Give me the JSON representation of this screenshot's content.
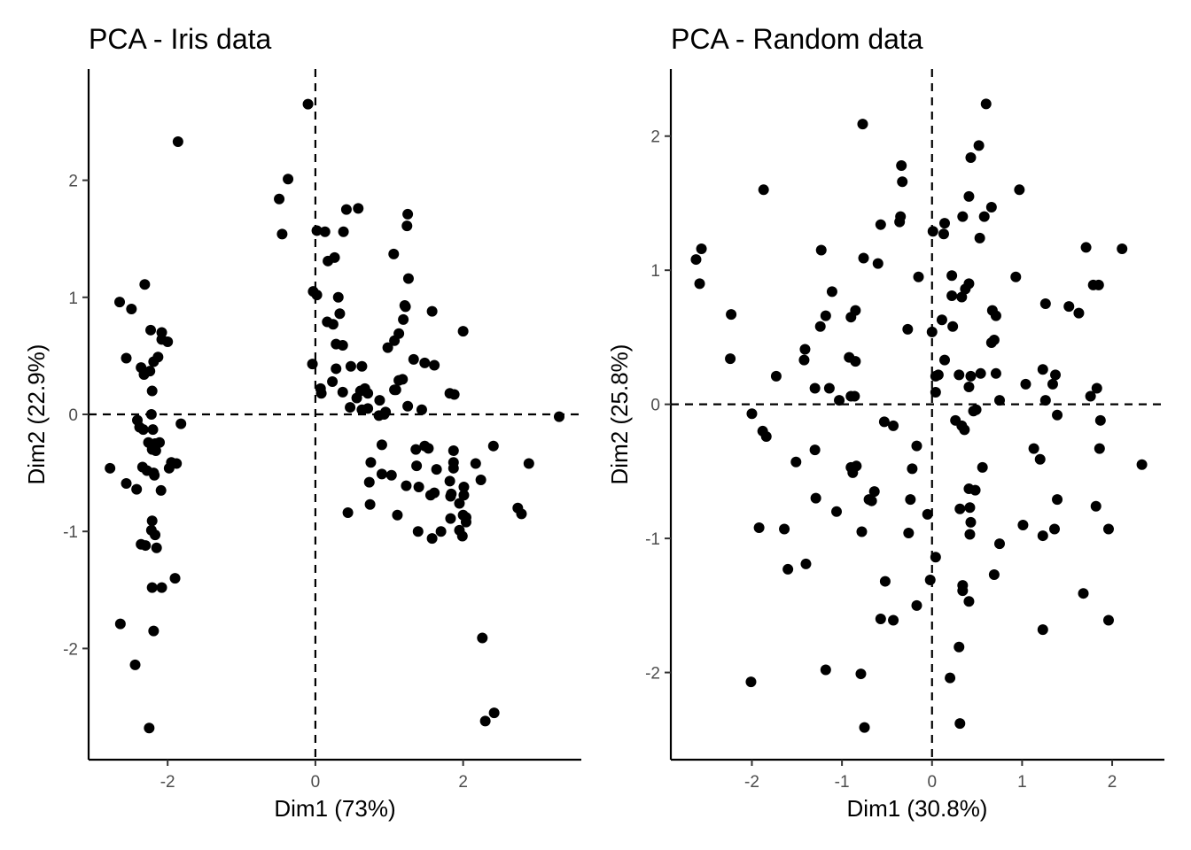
{
  "chart_data": [
    {
      "type": "scatter",
      "title": "PCA - Iris data",
      "xlabel": "Dim1 (73%)",
      "ylabel": "Dim2 (22.9%)",
      "xlim": [
        -3.07,
        3.6
      ],
      "ylim": [
        -2.95,
        2.95
      ],
      "x_ticks": [
        -2,
        0,
        2
      ],
      "y_ticks": [
        -2,
        -1,
        0,
        1,
        2
      ],
      "x_tick_labels": [
        "-2",
        "0",
        "2"
      ],
      "y_tick_labels": [
        "-2",
        "-1",
        "0",
        "1",
        "2"
      ],
      "reference_lines": {
        "x": 0,
        "y": 0,
        "style": "dashed"
      },
      "grid": false,
      "marker_color": "#000000",
      "points": [
        [
          -2.23,
          0.72
        ],
        [
          -2.08,
          0.7
        ],
        [
          -2.08,
          0.64
        ],
        [
          -2.13,
          0.49
        ],
        [
          -2.19,
          0.45
        ],
        [
          -2.0,
          0.62
        ],
        [
          -2.24,
          0.37
        ],
        [
          -2.36,
          0.4
        ],
        [
          -2.32,
          0.34
        ],
        [
          -2.49,
          0.9
        ],
        [
          -2.65,
          0.96
        ],
        [
          -2.31,
          1.11
        ],
        [
          -2.56,
          0.48
        ],
        [
          -2.21,
          0.2
        ],
        [
          -2.41,
          -0.05
        ],
        [
          -2.22,
          0.0
        ],
        [
          -2.33,
          -0.13
        ],
        [
          -2.38,
          -0.11
        ],
        [
          -2.2,
          -0.13
        ],
        [
          -2.26,
          -0.24
        ],
        [
          -2.17,
          -0.25
        ],
        [
          -2.11,
          -0.24
        ],
        [
          -2.21,
          -0.3
        ],
        [
          -2.16,
          -0.31
        ],
        [
          -1.82,
          -0.08
        ],
        [
          -1.95,
          -0.41
        ],
        [
          -1.88,
          -0.42
        ],
        [
          -1.98,
          -0.46
        ],
        [
          -2.34,
          -0.45
        ],
        [
          -2.19,
          -0.5
        ],
        [
          -2.28,
          -0.48
        ],
        [
          -2.18,
          -0.52
        ],
        [
          -2.56,
          -0.59
        ],
        [
          -2.42,
          -0.64
        ],
        [
          -2.09,
          -0.65
        ],
        [
          -2.78,
          -0.46
        ],
        [
          -2.21,
          -0.91
        ],
        [
          -2.22,
          -0.99
        ],
        [
          -2.17,
          -1.03
        ],
        [
          -2.36,
          -1.11
        ],
        [
          -2.3,
          -1.12
        ],
        [
          -2.15,
          -1.14
        ],
        [
          -1.9,
          -1.4
        ],
        [
          -2.21,
          -1.48
        ],
        [
          -2.08,
          -1.48
        ],
        [
          -2.19,
          -1.85
        ],
        [
          -2.64,
          -1.79
        ],
        [
          -2.44,
          -2.14
        ],
        [
          -2.25,
          -2.68
        ],
        [
          -1.86,
          2.33
        ],
        [
          -0.1,
          2.65
        ],
        [
          -0.37,
          2.01
        ],
        [
          -0.49,
          1.84
        ],
        [
          -0.45,
          1.54
        ],
        [
          0.02,
          1.57
        ],
        [
          0.13,
          1.56
        ],
        [
          0.38,
          1.56
        ],
        [
          0.42,
          1.75
        ],
        [
          0.58,
          1.76
        ],
        [
          0.17,
          1.31
        ],
        [
          0.26,
          1.34
        ],
        [
          -0.03,
          1.05
        ],
        [
          0.02,
          1.02
        ],
        [
          0.31,
          1.0
        ],
        [
          0.33,
          0.86
        ],
        [
          0.16,
          0.79
        ],
        [
          0.24,
          0.77
        ],
        [
          0.28,
          0.6
        ],
        [
          0.37,
          0.59
        ],
        [
          0.28,
          0.39
        ],
        [
          0.48,
          0.41
        ],
        [
          0.63,
          0.41
        ],
        [
          -0.04,
          0.43
        ],
        [
          0.07,
          0.22
        ],
        [
          0.08,
          0.18
        ],
        [
          0.23,
          0.28
        ],
        [
          0.37,
          0.19
        ],
        [
          0.56,
          0.14
        ],
        [
          0.67,
          0.22
        ],
        [
          0.71,
          0.18
        ],
        [
          0.47,
          0.06
        ],
        [
          0.63,
          0.04
        ],
        [
          0.61,
          0.2
        ],
        [
          0.71,
          0.05
        ],
        [
          0.86,
          -0.01
        ],
        [
          0.93,
          0.0
        ],
        [
          0.95,
          0.02
        ],
        [
          1.06,
          1.37
        ],
        [
          1.25,
          1.71
        ],
        [
          1.24,
          1.61
        ],
        [
          1.26,
          1.16
        ],
        [
          1.22,
          0.92
        ],
        [
          1.07,
          0.63
        ],
        [
          0.98,
          0.57
        ],
        [
          1.19,
          0.81
        ],
        [
          1.13,
          0.69
        ],
        [
          1.21,
          0.93
        ],
        [
          1.58,
          0.88
        ],
        [
          2.0,
          0.71
        ],
        [
          1.33,
          0.47
        ],
        [
          1.48,
          0.44
        ],
        [
          1.61,
          0.42
        ],
        [
          1.09,
          0.21
        ],
        [
          1.13,
          0.29
        ],
        [
          1.18,
          0.3
        ],
        [
          0.87,
          0.12
        ],
        [
          1.07,
          0.21
        ],
        [
          1.25,
          0.07
        ],
        [
          1.44,
          0.04
        ],
        [
          1.82,
          0.18
        ],
        [
          1.88,
          0.17
        ],
        [
          3.3,
          -0.02
        ],
        [
          0.9,
          -0.26
        ],
        [
          1.36,
          -0.3
        ],
        [
          1.53,
          -0.29
        ],
        [
          1.48,
          -0.27
        ],
        [
          1.87,
          -0.31
        ],
        [
          2.41,
          -0.27
        ],
        [
          2.89,
          -0.42
        ],
        [
          0.75,
          -0.41
        ],
        [
          1.37,
          -0.44
        ],
        [
          1.64,
          -0.47
        ],
        [
          1.87,
          -0.41
        ],
        [
          1.87,
          -0.46
        ],
        [
          2.17,
          -0.42
        ],
        [
          0.9,
          -0.51
        ],
        [
          1.03,
          -0.52
        ],
        [
          0.73,
          -0.58
        ],
        [
          1.23,
          -0.61
        ],
        [
          1.4,
          -0.62
        ],
        [
          1.82,
          -0.57
        ],
        [
          2.01,
          -0.62
        ],
        [
          2.24,
          -0.56
        ],
        [
          1.61,
          -0.67
        ],
        [
          1.84,
          -0.68
        ],
        [
          1.83,
          -0.7
        ],
        [
          1.95,
          -0.76
        ],
        [
          2.01,
          -0.69
        ],
        [
          0.44,
          -0.84
        ],
        [
          0.74,
          -0.77
        ],
        [
          1.11,
          -0.86
        ],
        [
          1.56,
          -0.69
        ],
        [
          2.0,
          -0.86
        ],
        [
          1.83,
          -0.89
        ],
        [
          2.04,
          -0.88
        ],
        [
          2.04,
          -0.92
        ],
        [
          2.74,
          -0.8
        ],
        [
          2.79,
          -0.85
        ],
        [
          1.39,
          -1.0
        ],
        [
          1.7,
          -1.0
        ],
        [
          1.95,
          -0.99
        ],
        [
          1.99,
          -1.04
        ],
        [
          1.58,
          -1.06
        ],
        [
          2.26,
          -1.91
        ],
        [
          2.42,
          -2.55
        ],
        [
          2.3,
          -2.62
        ]
      ]
    },
    {
      "type": "scatter",
      "title": "PCA - Random data",
      "xlabel": "Dim1 (30.8%)",
      "ylabel": "Dim2 (25.8%)",
      "xlim": [
        -2.9,
        2.58
      ],
      "ylim": [
        -2.65,
        2.5
      ],
      "x_ticks": [
        -2,
        -1,
        0,
        1,
        2
      ],
      "y_ticks": [
        -2,
        -1,
        0,
        1,
        2
      ],
      "x_tick_labels": [
        "-2",
        "-1",
        "0",
        "1",
        "2"
      ],
      "y_tick_labels": [
        "-2",
        "-1",
        "0",
        "1",
        "2"
      ],
      "reference_lines": {
        "x": 0,
        "y": 0,
        "style": "dashed"
      },
      "grid": false,
      "marker_color": "#000000",
      "points": [
        [
          -2.62,
          1.08
        ],
        [
          -2.56,
          1.16
        ],
        [
          -2.58,
          0.9
        ],
        [
          -2.23,
          0.67
        ],
        [
          -2.24,
          0.34
        ],
        [
          -1.87,
          1.6
        ],
        [
          -1.23,
          1.15
        ],
        [
          -1.41,
          0.41
        ],
        [
          -1.73,
          0.21
        ],
        [
          -1.42,
          0.33
        ],
        [
          -1.18,
          0.66
        ],
        [
          -1.11,
          0.84
        ],
        [
          -1.24,
          0.58
        ],
        [
          -0.9,
          0.65
        ],
        [
          -0.85,
          0.7
        ],
        [
          -0.77,
          2.09
        ],
        [
          -0.76,
          1.09
        ],
        [
          -0.6,
          1.05
        ],
        [
          -0.57,
          1.34
        ],
        [
          -0.34,
          1.78
        ],
        [
          -0.33,
          1.66
        ],
        [
          -0.36,
          1.36
        ],
        [
          -0.35,
          1.4
        ],
        [
          -0.15,
          0.95
        ],
        [
          -0.27,
          0.56
        ],
        [
          -0.85,
          0.32
        ],
        [
          -0.92,
          0.35
        ],
        [
          -1.3,
          0.12
        ],
        [
          -1.14,
          0.12
        ],
        [
          -1.03,
          0.03
        ],
        [
          -0.86,
          0.06
        ],
        [
          -0.9,
          0.06
        ],
        [
          -2.0,
          -0.07
        ],
        [
          -1.88,
          -0.2
        ],
        [
          -1.84,
          -0.24
        ],
        [
          -1.51,
          -0.43
        ],
        [
          -1.3,
          -0.34
        ],
        [
          -0.9,
          -0.47
        ],
        [
          -0.88,
          -0.51
        ],
        [
          -0.84,
          -0.46
        ],
        [
          -0.53,
          -0.13
        ],
        [
          -0.43,
          -0.16
        ],
        [
          -0.17,
          -0.31
        ],
        [
          -0.22,
          -0.48
        ],
        [
          -0.24,
          -0.71
        ],
        [
          -0.64,
          -0.65
        ],
        [
          -0.67,
          -0.72
        ],
        [
          -0.7,
          -0.71
        ],
        [
          -1.29,
          -0.7
        ],
        [
          -1.06,
          -0.8
        ],
        [
          -0.78,
          -0.95
        ],
        [
          -0.26,
          -0.96
        ],
        [
          -0.05,
          -0.82
        ],
        [
          -1.92,
          -0.92
        ],
        [
          -1.64,
          -0.93
        ],
        [
          -1.6,
          -1.23
        ],
        [
          -1.4,
          -1.19
        ],
        [
          -0.52,
          -1.32
        ],
        [
          -0.17,
          -1.5
        ],
        [
          -0.43,
          -1.61
        ],
        [
          -0.57,
          -1.6
        ],
        [
          -0.02,
          -1.31
        ],
        [
          0.04,
          -1.14
        ],
        [
          -1.18,
          -1.98
        ],
        [
          -0.79,
          -2.01
        ],
        [
          -2.01,
          -2.07
        ],
        [
          -0.75,
          -2.41
        ],
        [
          0.01,
          1.29
        ],
        [
          0.13,
          1.27
        ],
        [
          0.14,
          1.35
        ],
        [
          0.34,
          1.4
        ],
        [
          0.41,
          1.55
        ],
        [
          0.43,
          1.84
        ],
        [
          0.52,
          1.93
        ],
        [
          0.6,
          2.24
        ],
        [
          0.53,
          1.24
        ],
        [
          0.58,
          1.4
        ],
        [
          0.66,
          1.47
        ],
        [
          0.97,
          1.6
        ],
        [
          0.22,
          0.96
        ],
        [
          0.37,
          0.86
        ],
        [
          0.41,
          0.9
        ],
        [
          0.22,
          0.81
        ],
        [
          0.33,
          0.8
        ],
        [
          0.23,
          0.58
        ],
        [
          0.11,
          0.63
        ],
        [
          0.0,
          0.54
        ],
        [
          0.67,
          0.7
        ],
        [
          0.71,
          0.66
        ],
        [
          0.66,
          0.46
        ],
        [
          0.69,
          0.48
        ],
        [
          0.14,
          0.33
        ],
        [
          0.04,
          0.21
        ],
        [
          0.07,
          0.22
        ],
        [
          0.3,
          0.22
        ],
        [
          0.54,
          0.23
        ],
        [
          0.71,
          0.23
        ],
        [
          0.04,
          0.09
        ],
        [
          0.43,
          0.21
        ],
        [
          0.41,
          0.13
        ],
        [
          0.49,
          -0.04
        ],
        [
          0.46,
          -0.05
        ],
        [
          0.33,
          -0.16
        ],
        [
          0.26,
          -0.12
        ],
        [
          0.36,
          -0.19
        ],
        [
          0.93,
          0.95
        ],
        [
          1.26,
          0.75
        ],
        [
          1.52,
          0.73
        ],
        [
          1.63,
          0.68
        ],
        [
          1.71,
          1.17
        ],
        [
          2.11,
          1.16
        ],
        [
          1.79,
          0.89
        ],
        [
          1.85,
          0.89
        ],
        [
          1.23,
          0.26
        ],
        [
          1.37,
          0.22
        ],
        [
          1.34,
          0.15
        ],
        [
          1.04,
          0.15
        ],
        [
          1.26,
          0.03
        ],
        [
          1.76,
          0.06
        ],
        [
          1.83,
          0.12
        ],
        [
          1.39,
          -0.08
        ],
        [
          0.75,
          0.03
        ],
        [
          1.87,
          -0.12
        ],
        [
          1.86,
          -0.33
        ],
        [
          1.13,
          -0.33
        ],
        [
          1.2,
          -0.41
        ],
        [
          0.56,
          -0.47
        ],
        [
          2.33,
          -0.45
        ],
        [
          0.41,
          -0.63
        ],
        [
          0.48,
          -0.64
        ],
        [
          0.31,
          -0.78
        ],
        [
          0.42,
          -0.77
        ],
        [
          1.39,
          -0.71
        ],
        [
          1.82,
          -0.76
        ],
        [
          0.43,
          -0.88
        ],
        [
          0.42,
          -0.97
        ],
        [
          1.01,
          -0.9
        ],
        [
          1.23,
          -0.98
        ],
        [
          1.36,
          -0.93
        ],
        [
          1.96,
          -0.93
        ],
        [
          0.75,
          -1.04
        ],
        [
          0.69,
          -1.27
        ],
        [
          0.34,
          -1.35
        ],
        [
          0.34,
          -1.39
        ],
        [
          0.41,
          -1.47
        ],
        [
          1.68,
          -1.41
        ],
        [
          1.23,
          -1.68
        ],
        [
          1.96,
          -1.61
        ],
        [
          0.3,
          -1.81
        ],
        [
          0.2,
          -2.04
        ],
        [
          0.31,
          -2.38
        ]
      ]
    }
  ]
}
